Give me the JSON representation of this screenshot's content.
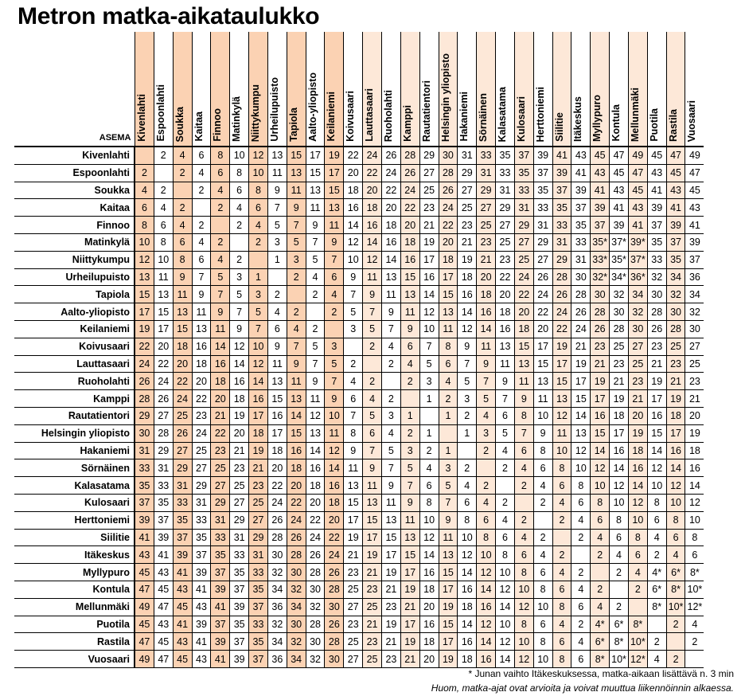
{
  "title": "Metron matka-aikataulukko",
  "corner_label": "ASEMA",
  "stations": [
    "Kivenlahti",
    "Espoonlahti",
    "Soukka",
    "Kaitaa",
    "Finnoo",
    "Matinkylä",
    "Niittykumpu",
    "Urheilupuisto",
    "Tapiola",
    "Aalto-yliopisto",
    "Keilaniemi",
    "Koivusaari",
    "Lauttasaari",
    "Ruoholahti",
    "Kamppi",
    "Rautatientori",
    "Helsingin yliopisto",
    "Hakaniemi",
    "Sörnäinen",
    "Kalasatama",
    "Kulosaari",
    "Herttoniemi",
    "Siilitie",
    "Itäkeskus",
    "Myllypuro",
    "Kontula",
    "Mellunmäki",
    "Puotila",
    "Rastila",
    "Vuosaari"
  ],
  "column_shading": [
    "s",
    "",
    "s",
    "",
    "s",
    "",
    "s",
    "",
    "s",
    "",
    "s",
    "",
    "l",
    "",
    "l",
    "",
    "l",
    "",
    "l",
    "",
    "l",
    "",
    "l",
    "",
    "l",
    "",
    "l",
    "",
    "l",
    ""
  ],
  "rows": [
    [
      "",
      "2",
      "4",
      "6",
      "8",
      "10",
      "12",
      "13",
      "15",
      "17",
      "19",
      "22",
      "24",
      "26",
      "28",
      "29",
      "30",
      "31",
      "33",
      "35",
      "37",
      "39",
      "41",
      "43",
      "45",
      "47",
      "49",
      "45",
      "47",
      "49"
    ],
    [
      "2",
      "",
      "2",
      "4",
      "6",
      "8",
      "10",
      "11",
      "13",
      "15",
      "17",
      "20",
      "22",
      "24",
      "26",
      "27",
      "28",
      "29",
      "31",
      "33",
      "35",
      "37",
      "39",
      "41",
      "43",
      "45",
      "47",
      "43",
      "45",
      "47"
    ],
    [
      "4",
      "2",
      "",
      "2",
      "4",
      "6",
      "8",
      "9",
      "11",
      "13",
      "15",
      "18",
      "20",
      "22",
      "24",
      "25",
      "26",
      "27",
      "29",
      "31",
      "33",
      "35",
      "37",
      "39",
      "41",
      "43",
      "45",
      "41",
      "43",
      "45"
    ],
    [
      "6",
      "4",
      "2",
      "",
      "2",
      "4",
      "6",
      "7",
      "9",
      "11",
      "13",
      "16",
      "18",
      "20",
      "22",
      "23",
      "24",
      "25",
      "27",
      "29",
      "31",
      "33",
      "35",
      "37",
      "39",
      "41",
      "43",
      "39",
      "41",
      "43"
    ],
    [
      "8",
      "6",
      "4",
      "2",
      "",
      "2",
      "4",
      "5",
      "7",
      "9",
      "11",
      "14",
      "16",
      "18",
      "20",
      "21",
      "22",
      "23",
      "25",
      "27",
      "29",
      "31",
      "33",
      "35",
      "37",
      "39",
      "41",
      "37",
      "39",
      "41"
    ],
    [
      "10",
      "8",
      "6",
      "4",
      "2",
      "",
      "2",
      "3",
      "5",
      "7",
      "9",
      "12",
      "14",
      "16",
      "18",
      "19",
      "20",
      "21",
      "23",
      "25",
      "27",
      "29",
      "31",
      "33",
      "35*",
      "37*",
      "39*",
      "35",
      "37",
      "39"
    ],
    [
      "12",
      "10",
      "8",
      "6",
      "4",
      "2",
      "",
      "1",
      "3",
      "5",
      "7",
      "10",
      "12",
      "14",
      "16",
      "17",
      "18",
      "19",
      "21",
      "23",
      "25",
      "27",
      "29",
      "31",
      "33*",
      "35*",
      "37*",
      "33",
      "35",
      "37"
    ],
    [
      "13",
      "11",
      "9",
      "7",
      "5",
      "3",
      "1",
      "",
      "2",
      "4",
      "6",
      "9",
      "11",
      "13",
      "15",
      "16",
      "17",
      "18",
      "20",
      "22",
      "24",
      "26",
      "28",
      "30",
      "32*",
      "34*",
      "36*",
      "32",
      "34",
      "36"
    ],
    [
      "15",
      "13",
      "11",
      "9",
      "7",
      "5",
      "3",
      "2",
      "",
      "2",
      "4",
      "7",
      "9",
      "11",
      "13",
      "14",
      "15",
      "16",
      "18",
      "20",
      "22",
      "24",
      "26",
      "28",
      "30",
      "32",
      "34",
      "30",
      "32",
      "34"
    ],
    [
      "17",
      "15",
      "13",
      "11",
      "9",
      "7",
      "5",
      "4",
      "2",
      "",
      "2",
      "5",
      "7",
      "9",
      "11",
      "12",
      "13",
      "14",
      "16",
      "18",
      "20",
      "22",
      "24",
      "26",
      "28",
      "30",
      "32",
      "28",
      "30",
      "32"
    ],
    [
      "19",
      "17",
      "15",
      "13",
      "11",
      "9",
      "7",
      "6",
      "4",
      "2",
      "",
      "3",
      "5",
      "7",
      "9",
      "10",
      "11",
      "12",
      "14",
      "16",
      "18",
      "20",
      "22",
      "24",
      "26",
      "28",
      "30",
      "26",
      "28",
      "30"
    ],
    [
      "22",
      "20",
      "18",
      "16",
      "14",
      "12",
      "10",
      "9",
      "7",
      "5",
      "3",
      "",
      "2",
      "4",
      "6",
      "7",
      "8",
      "9",
      "11",
      "13",
      "15",
      "17",
      "19",
      "21",
      "23",
      "25",
      "27",
      "23",
      "25",
      "27"
    ],
    [
      "24",
      "22",
      "20",
      "18",
      "16",
      "14",
      "12",
      "11",
      "9",
      "7",
      "5",
      "2",
      "",
      "2",
      "4",
      "5",
      "6",
      "7",
      "9",
      "11",
      "13",
      "15",
      "17",
      "19",
      "21",
      "23",
      "25",
      "21",
      "23",
      "25"
    ],
    [
      "26",
      "24",
      "22",
      "20",
      "18",
      "16",
      "14",
      "13",
      "11",
      "9",
      "7",
      "4",
      "2",
      "",
      "2",
      "3",
      "4",
      "5",
      "7",
      "9",
      "11",
      "13",
      "15",
      "17",
      "19",
      "21",
      "23",
      "19",
      "21",
      "23"
    ],
    [
      "28",
      "26",
      "24",
      "22",
      "20",
      "18",
      "16",
      "15",
      "13",
      "11",
      "9",
      "6",
      "4",
      "2",
      "",
      "1",
      "2",
      "3",
      "5",
      "7",
      "9",
      "11",
      "13",
      "15",
      "17",
      "19",
      "21",
      "17",
      "19",
      "21"
    ],
    [
      "29",
      "27",
      "25",
      "23",
      "21",
      "19",
      "17",
      "16",
      "14",
      "12",
      "10",
      "7",
      "5",
      "3",
      "1",
      "",
      "1",
      "2",
      "4",
      "6",
      "8",
      "10",
      "12",
      "14",
      "16",
      "18",
      "20",
      "16",
      "18",
      "20"
    ],
    [
      "30",
      "28",
      "26",
      "24",
      "22",
      "20",
      "18",
      "17",
      "15",
      "13",
      "11",
      "8",
      "6",
      "4",
      "2",
      "1",
      "",
      "1",
      "3",
      "5",
      "7",
      "9",
      "11",
      "13",
      "15",
      "17",
      "19",
      "15",
      "17",
      "19"
    ],
    [
      "31",
      "29",
      "27",
      "25",
      "23",
      "21",
      "19",
      "18",
      "16",
      "14",
      "12",
      "9",
      "7",
      "5",
      "3",
      "2",
      "1",
      "",
      "2",
      "4",
      "6",
      "8",
      "10",
      "12",
      "14",
      "16",
      "18",
      "14",
      "16",
      "18"
    ],
    [
      "33",
      "31",
      "29",
      "27",
      "25",
      "23",
      "21",
      "20",
      "18",
      "16",
      "14",
      "11",
      "9",
      "7",
      "5",
      "4",
      "3",
      "2",
      "",
      "2",
      "4",
      "6",
      "8",
      "10",
      "12",
      "14",
      "16",
      "12",
      "14",
      "16"
    ],
    [
      "35",
      "33",
      "31",
      "29",
      "27",
      "25",
      "23",
      "22",
      "20",
      "18",
      "16",
      "13",
      "11",
      "9",
      "7",
      "6",
      "5",
      "4",
      "2",
      "",
      "2",
      "4",
      "6",
      "8",
      "10",
      "12",
      "14",
      "10",
      "12",
      "14"
    ],
    [
      "37",
      "35",
      "33",
      "31",
      "29",
      "27",
      "25",
      "24",
      "22",
      "20",
      "18",
      "15",
      "13",
      "11",
      "9",
      "8",
      "7",
      "6",
      "4",
      "2",
      "",
      "2",
      "4",
      "6",
      "8",
      "10",
      "12",
      "8",
      "10",
      "12"
    ],
    [
      "39",
      "37",
      "35",
      "33",
      "31",
      "29",
      "27",
      "26",
      "24",
      "22",
      "20",
      "17",
      "15",
      "13",
      "11",
      "10",
      "9",
      "8",
      "6",
      "4",
      "2",
      "",
      "2",
      "4",
      "6",
      "8",
      "10",
      "6",
      "8",
      "10"
    ],
    [
      "41",
      "39",
      "37",
      "35",
      "33",
      "31",
      "29",
      "28",
      "26",
      "24",
      "22",
      "19",
      "17",
      "15",
      "13",
      "12",
      "11",
      "10",
      "8",
      "6",
      "4",
      "2",
      "",
      "2",
      "4",
      "6",
      "8",
      "4",
      "6",
      "8"
    ],
    [
      "43",
      "41",
      "39",
      "37",
      "35",
      "33",
      "31",
      "30",
      "28",
      "26",
      "24",
      "21",
      "19",
      "17",
      "15",
      "14",
      "13",
      "12",
      "10",
      "8",
      "6",
      "4",
      "2",
      "",
      "2",
      "4",
      "6",
      "2",
      "4",
      "6"
    ],
    [
      "45",
      "43",
      "41",
      "39",
      "37",
      "35",
      "33",
      "32",
      "30",
      "28",
      "26",
      "23",
      "21",
      "19",
      "17",
      "16",
      "15",
      "14",
      "12",
      "10",
      "8",
      "6",
      "4",
      "2",
      "",
      "2",
      "4",
      "4*",
      "6*",
      "8*"
    ],
    [
      "47",
      "45",
      "43",
      "41",
      "39",
      "37",
      "35",
      "34",
      "32",
      "30",
      "28",
      "25",
      "23",
      "21",
      "19",
      "18",
      "17",
      "16",
      "14",
      "12",
      "10",
      "8",
      "6",
      "4",
      "2",
      "",
      "2",
      "6*",
      "8*",
      "10*"
    ],
    [
      "49",
      "47",
      "45",
      "43",
      "41",
      "39",
      "37",
      "36",
      "34",
      "32",
      "30",
      "27",
      "25",
      "23",
      "21",
      "20",
      "19",
      "18",
      "16",
      "14",
      "12",
      "10",
      "8",
      "6",
      "4",
      "2",
      "",
      "8*",
      "10*",
      "12*"
    ],
    [
      "45",
      "43",
      "41",
      "39",
      "37",
      "35",
      "33",
      "32",
      "30",
      "28",
      "26",
      "23",
      "21",
      "19",
      "17",
      "16",
      "15",
      "14",
      "12",
      "10",
      "8",
      "6",
      "4",
      "2",
      "4*",
      "6*",
      "8*",
      "",
      "2",
      "4"
    ],
    [
      "47",
      "45",
      "43",
      "41",
      "39",
      "37",
      "35",
      "34",
      "32",
      "30",
      "28",
      "25",
      "23",
      "21",
      "19",
      "18",
      "17",
      "16",
      "14",
      "12",
      "10",
      "8",
      "6",
      "4",
      "6*",
      "8*",
      "10*",
      "2",
      "",
      "2"
    ],
    [
      "49",
      "47",
      "45",
      "43",
      "41",
      "39",
      "37",
      "36",
      "34",
      "32",
      "30",
      "27",
      "25",
      "23",
      "21",
      "20",
      "19",
      "18",
      "16",
      "14",
      "12",
      "10",
      "8",
      "6",
      "8*",
      "10*",
      "12*",
      "4",
      "2",
      ""
    ]
  ],
  "footnote1": "* Junan vaihto Itäkeskuksessa, matka-aikaan lisättävä n. 3 min",
  "footnote2": "Huom, matka-ajat ovat arvioita ja voivat muuttua liikennöinnin alkaessa."
}
